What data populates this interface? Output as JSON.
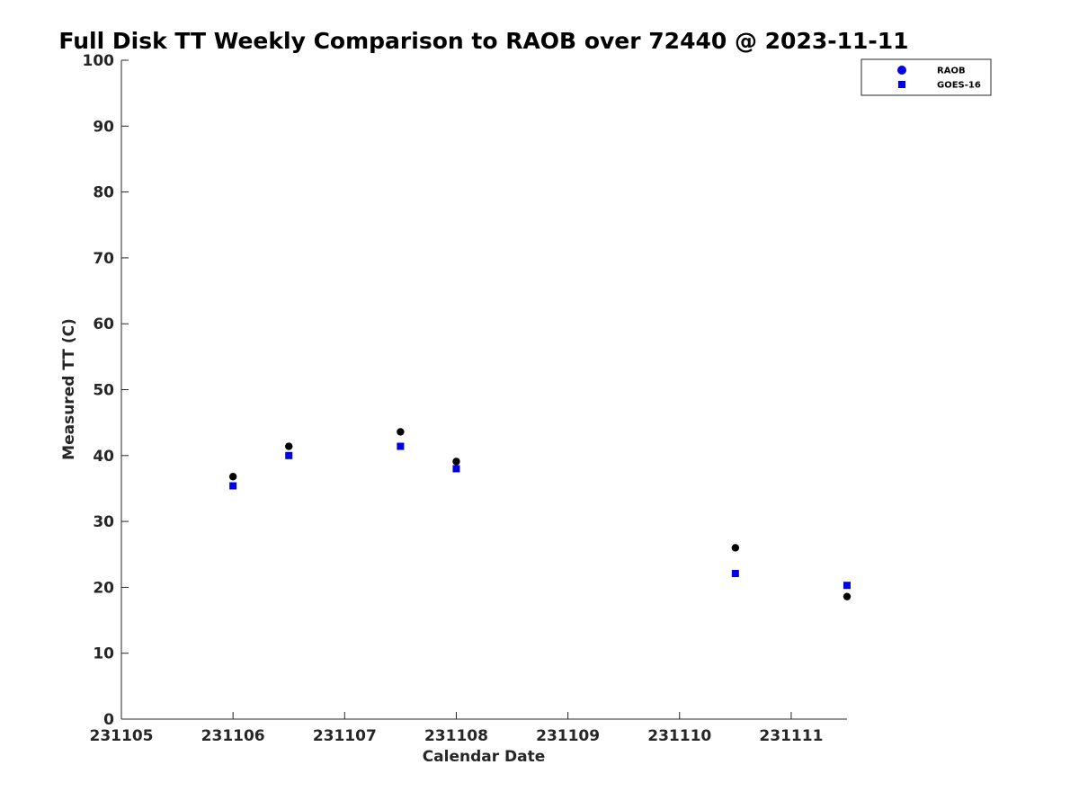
{
  "chart_data": {
    "type": "scatter",
    "title": "Full Disk TT Weekly Comparison to RAOB over 72440 @ 2023-11-11",
    "xlabel": "Calendar Date",
    "ylabel": "Measured TT (C)",
    "xlim": [
      "231105",
      "231111.5"
    ],
    "ylim": [
      0,
      100
    ],
    "x_ticks": [
      "231105",
      "231106",
      "231107",
      "231108",
      "231109",
      "231110",
      "231111"
    ],
    "y_ticks": [
      0,
      10,
      20,
      30,
      40,
      50,
      60,
      70,
      80,
      90,
      100
    ],
    "grid": false,
    "legend_position": "top-right",
    "series": [
      {
        "name": "RAOB",
        "marker": "circle",
        "color": "#000000",
        "legend_color": "#0000e6",
        "points": [
          {
            "date": "2023-11-06 00Z",
            "y": 36.8
          },
          {
            "date": "2023-11-06 12Z",
            "y": 41.4
          },
          {
            "date": "2023-11-07 12Z",
            "y": 43.6
          },
          {
            "date": "2023-11-08 00Z",
            "y": 39.1
          },
          {
            "date": "2023-11-10 12Z",
            "y": 26.0
          },
          {
            "date": "2023-11-11 12Z",
            "y": 18.6
          }
        ]
      },
      {
        "name": "GOES-16",
        "marker": "square",
        "color": "#0000e6",
        "points": [
          {
            "date": "2023-11-06 00Z",
            "y": 35.4
          },
          {
            "date": "2023-11-06 12Z",
            "y": 40.0
          },
          {
            "date": "2023-11-07 12Z",
            "y": 41.4
          },
          {
            "date": "2023-11-08 00Z",
            "y": 38.0
          },
          {
            "date": "2023-11-10 12Z",
            "y": 22.1
          },
          {
            "date": "2023-11-11 12Z",
            "y": 20.3
          }
        ]
      }
    ]
  }
}
